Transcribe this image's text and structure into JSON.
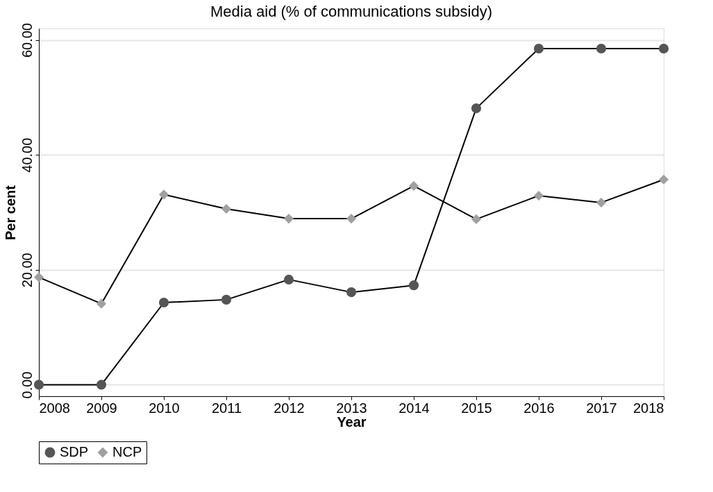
{
  "chart_data": {
    "type": "line",
    "title": "Media aid (% of communications subsidy)",
    "xlabel": "Year",
    "ylabel": "Per cent",
    "x": [
      2008,
      2009,
      2010,
      2011,
      2012,
      2013,
      2014,
      2015,
      2016,
      2017,
      2018
    ],
    "series": [
      {
        "name": "SDP",
        "color": "#555555",
        "marker": "circle",
        "values": [
          0,
          0,
          14.3,
          14.8,
          18.3,
          16.1,
          17.3,
          48.1,
          58.5,
          58.5,
          58.5
        ]
      },
      {
        "name": "NCP",
        "color": "#a0a0a0",
        "marker": "diamond",
        "values": [
          18.7,
          14.1,
          33.1,
          30.6,
          28.9,
          28.9,
          34.6,
          28.8,
          32.9,
          31.7,
          35.7
        ]
      }
    ],
    "xlim": [
      2008,
      2018
    ],
    "xticks": [
      2008,
      2009,
      2010,
      2011,
      2012,
      2013,
      2014,
      2015,
      2016,
      2017,
      2018
    ],
    "ylim": [
      -2,
      62
    ],
    "yticks": [
      {
        "value": 0,
        "label": "0.00"
      },
      {
        "value": 20,
        "label": "20.00"
      },
      {
        "value": 40,
        "label": "40.00"
      },
      {
        "value": 60,
        "label": "60.00"
      }
    ],
    "grid": "y",
    "legend": "bottom",
    "line_style": "solid"
  }
}
